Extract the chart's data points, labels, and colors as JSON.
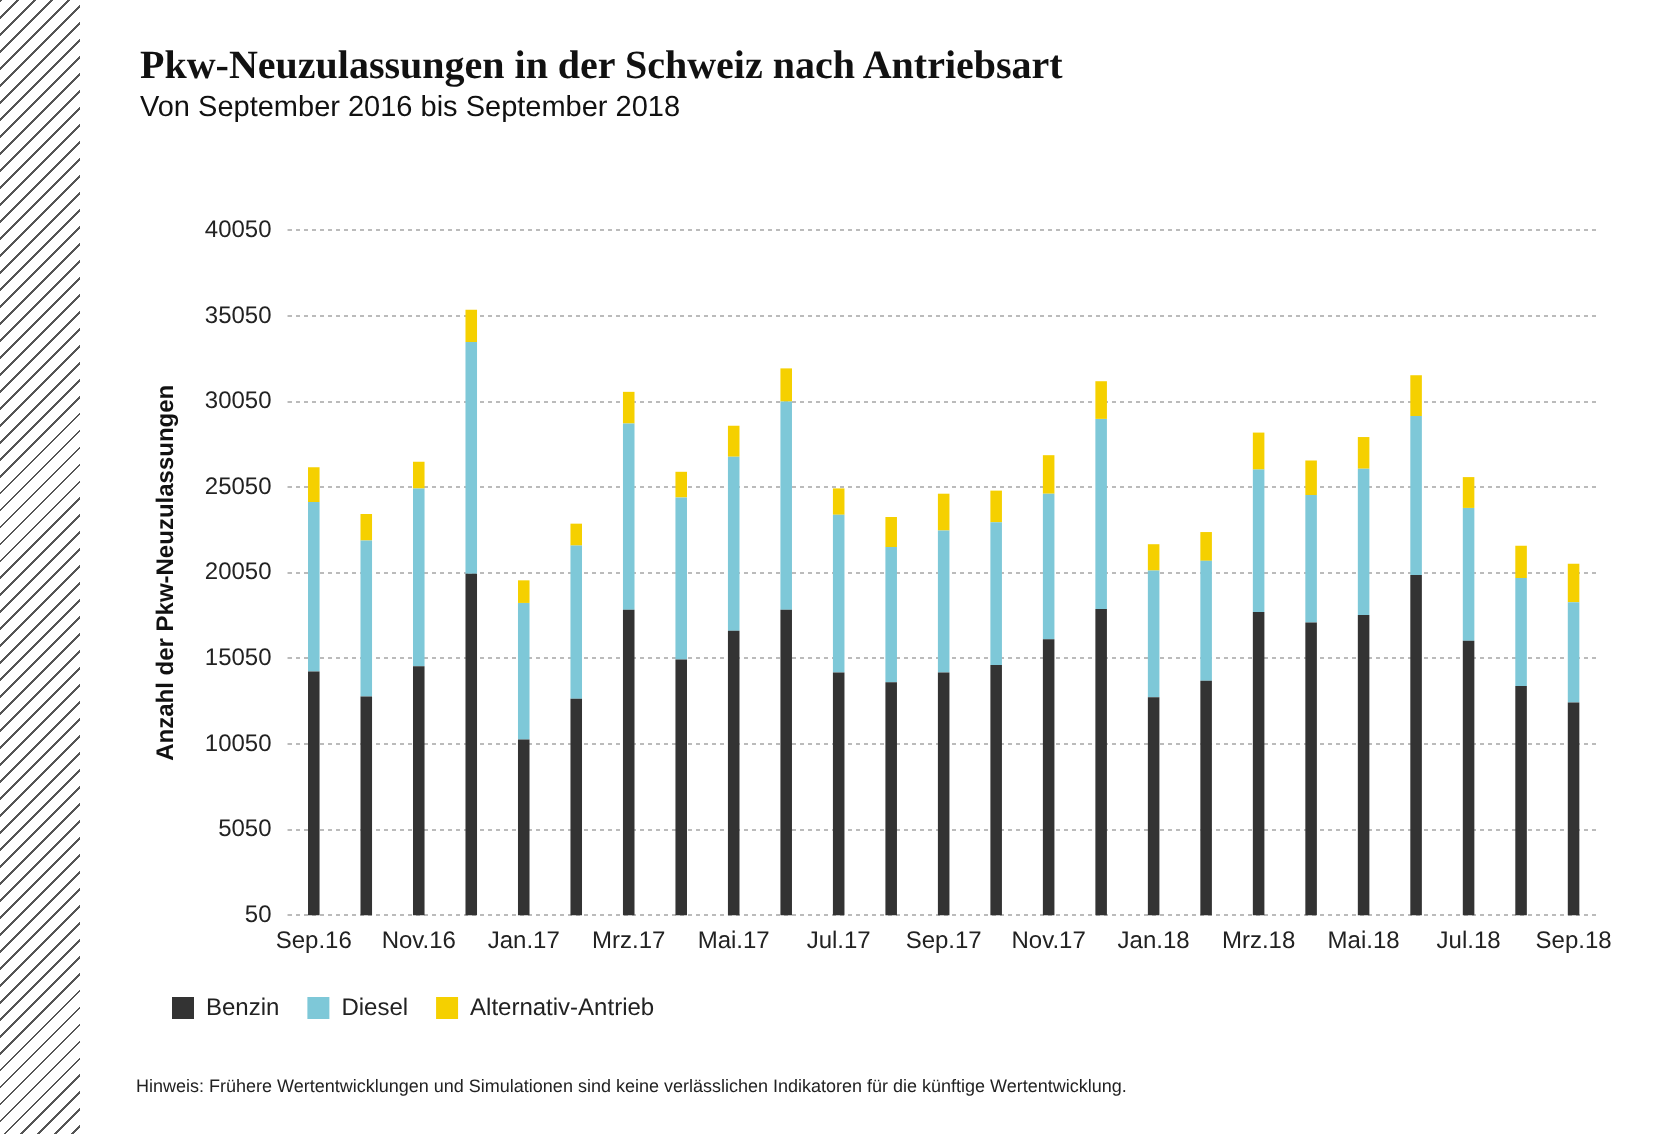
{
  "chart_data": {
    "type": "bar",
    "title": "Pkw-Neuzulassungen in der Schweiz nach Antriebsart",
    "subtitle": "Von September 2016 bis September 2018",
    "ylabel": "Anzahl der Pkw-Neuzulassungen",
    "annotations": [
      "Hinweis:  Frühere Wertentwicklungen und Simulationen sind keine verlässlichen Indikatoren für die künftige Wertentwicklung."
    ],
    "categories": [
      "Sep.16",
      null,
      "Nov.16",
      null,
      "Jan.17",
      null,
      "Mrz.17",
      null,
      "Mai.17",
      null,
      "Jul.17",
      null,
      "Sep.17",
      null,
      "Nov.17",
      null,
      "Jan.18",
      null,
      "Mrz.18",
      null,
      "Mai.18",
      null,
      "Jul.18",
      null,
      "Sep.18"
    ],
    "stacked": true,
    "series": [
      {
        "name": "Benzin",
        "color": "#333333",
        "values": [
          14280,
          12830,
          14590,
          20000,
          10310,
          12690,
          17890,
          14980,
          16660,
          17890,
          14230,
          13660,
          14230,
          14670,
          16170,
          17930,
          12780,
          13750,
          17760,
          17140,
          17580,
          19920,
          16080,
          13440,
          12470
        ]
      },
      {
        "name": "Diesel",
        "color": "#7ec8d8",
        "values": [
          9910,
          9110,
          10390,
          13530,
          7980,
          8950,
          10880,
          9470,
          10170,
          12160,
          9210,
          7890,
          8290,
          8330,
          8500,
          11110,
          7400,
          7000,
          8320,
          7450,
          8550,
          9290,
          7760,
          6300,
          5860
        ]
      },
      {
        "name": "Alternativ-Antrieb",
        "color": "#f5d000",
        "values": [
          2030,
          1540,
          1550,
          1890,
          1320,
          1280,
          1850,
          1500,
          1810,
          1940,
          1540,
          1760,
          2150,
          1850,
          2250,
          2200,
          1540,
          1680,
          2160,
          2020,
          1850,
          2380,
          1800,
          1890,
          2250
        ]
      }
    ],
    "ylim": [
      50,
      40050
    ],
    "yticks": [
      50,
      5050,
      10050,
      15050,
      20050,
      25050,
      30050,
      35050,
      40050
    ],
    "grid": "y",
    "legend": "bottom"
  }
}
